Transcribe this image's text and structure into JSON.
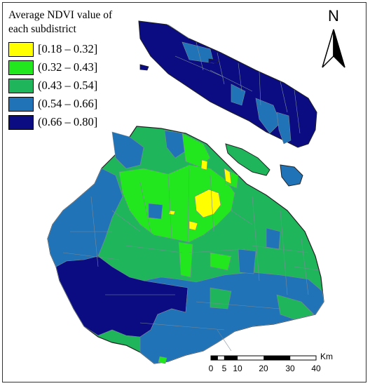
{
  "legend": {
    "title_line1": "Average NDVI value of",
    "title_line2": "each subdistrict",
    "classes": [
      {
        "label": "[0.18 – 0.32]",
        "color": "#ffff00"
      },
      {
        "label": "(0.32 – 0.43]",
        "color": "#22e61e"
      },
      {
        "label": "(0.43 – 0.54]",
        "color": "#1fb65b"
      },
      {
        "label": "(0.54 – 0.66]",
        "color": "#1f73b6"
      },
      {
        "label": "(0.66 – 0.80]",
        "color": "#0b0c82"
      }
    ]
  },
  "north": {
    "letter": "N",
    "icon": "north-arrow-icon"
  },
  "scale": {
    "unit": "Km",
    "ticks": [
      "0",
      "5",
      "10",
      "20",
      "30",
      "40"
    ]
  },
  "colors": {
    "outline": "#222222",
    "boundary": "#7a8a9a"
  }
}
